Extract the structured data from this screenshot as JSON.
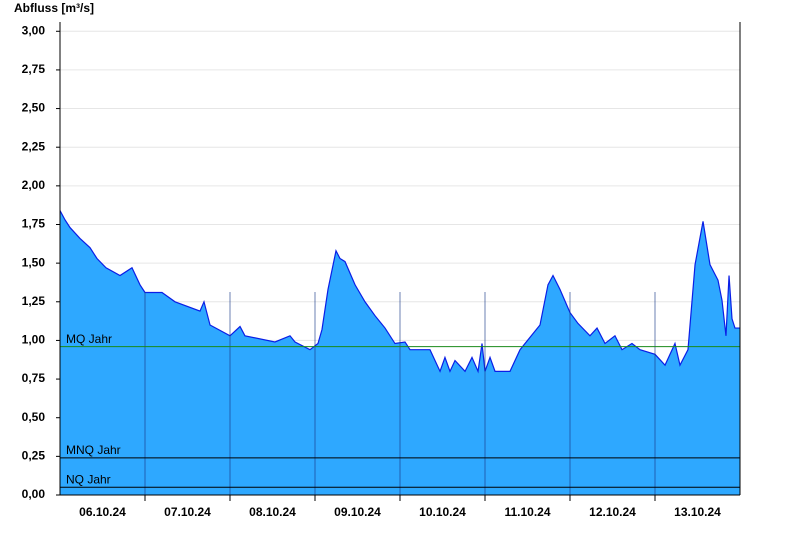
{
  "chart_data": {
    "type": "area",
    "y_label": "Abfluss [m³/s]",
    "color": "#2ea8ff",
    "line_color": "#0a1ee6",
    "xlim": [
      0,
      8
    ],
    "xticks": [
      {
        "value": 0.5,
        "label": "06.10.24"
      },
      {
        "value": 1.5,
        "label": "07.10.24"
      },
      {
        "value": 2.5,
        "label": "08.10.24"
      },
      {
        "value": 3.5,
        "label": "09.10.24"
      },
      {
        "value": 4.5,
        "label": "10.10.24"
      },
      {
        "value": 5.5,
        "label": "11.10.24"
      },
      {
        "value": 6.5,
        "label": "12.10.24"
      },
      {
        "value": 7.5,
        "label": "13.10.24"
      }
    ],
    "ylim": [
      0,
      3.06
    ],
    "yticks": [
      {
        "value": 0,
        "label": "0,00"
      },
      {
        "value": 0.25,
        "label": "0,25"
      },
      {
        "value": 0.5,
        "label": "0,50"
      },
      {
        "value": 0.75,
        "label": "0,75"
      },
      {
        "value": 1,
        "label": "1,00"
      },
      {
        "value": 1.25,
        "label": "1,25"
      },
      {
        "value": 1.5,
        "label": "1,50"
      },
      {
        "value": 1.75,
        "label": "1,75"
      },
      {
        "value": 2,
        "label": "2,00"
      },
      {
        "value": 2.25,
        "label": "2,25"
      },
      {
        "value": 2.5,
        "label": "2,50"
      },
      {
        "value": 2.75,
        "label": "2,75"
      },
      {
        "value": 3,
        "label": "3,00"
      }
    ],
    "grid": true,
    "x": [
      0,
      0.059,
      0.118,
      0.235,
      0.353,
      0.435,
      0.541,
      0.706,
      0.847,
      0.941,
      1,
      1.2,
      1.353,
      1.647,
      1.694,
      1.765,
      2,
      2.118,
      2.176,
      2.529,
      2.706,
      2.765,
      2.941,
      3.035,
      3.082,
      3.153,
      3.247,
      3.294,
      3.353,
      3.471,
      3.588,
      3.706,
      3.824,
      3.941,
      4.059,
      4.118,
      4.353,
      4.471,
      4.529,
      4.588,
      4.647,
      4.765,
      4.847,
      4.918,
      4.965,
      5,
      5.059,
      5.118,
      5.294,
      5.412,
      5.529,
      5.647,
      5.741,
      5.8,
      5.882,
      6,
      6.094,
      6.235,
      6.318,
      6.412,
      6.529,
      6.612,
      6.729,
      6.824,
      7,
      7.118,
      7.235,
      7.294,
      7.388,
      7.471,
      7.565,
      7.647,
      7.741,
      7.788,
      7.835,
      7.871,
      7.906,
      7.941,
      8
    ],
    "values": [
      1.84,
      1.78,
      1.73,
      1.66,
      1.6,
      1.53,
      1.47,
      1.42,
      1.47,
      1.36,
      1.31,
      1.31,
      1.25,
      1.19,
      1.25,
      1.1,
      1.03,
      1.09,
      1.03,
      0.99,
      1.03,
      0.99,
      0.94,
      0.98,
      1.07,
      1.33,
      1.58,
      1.53,
      1.51,
      1.36,
      1.25,
      1.16,
      1.08,
      0.98,
      0.99,
      0.94,
      0.94,
      0.8,
      0.89,
      0.8,
      0.87,
      0.8,
      0.89,
      0.8,
      0.98,
      0.8,
      0.89,
      0.8,
      0.8,
      0.94,
      1.02,
      1.1,
      1.36,
      1.42,
      1.33,
      1.18,
      1.11,
      1.03,
      1.08,
      0.98,
      1.03,
      0.94,
      0.98,
      0.94,
      0.91,
      0.84,
      0.98,
      0.84,
      0.94,
      1.49,
      1.77,
      1.49,
      1.39,
      1.26,
      1.03,
      1.42,
      1.14,
      1.08,
      1.08
    ],
    "reference_lines": [
      {
        "label": "MQ Jahr",
        "value": 0.96,
        "color": "#1a8a1a"
      },
      {
        "label": "MNQ Jahr",
        "value": 0.24,
        "color": "#000000"
      },
      {
        "label": "NQ Jahr",
        "value": 0.05,
        "color": "#000000"
      }
    ]
  }
}
